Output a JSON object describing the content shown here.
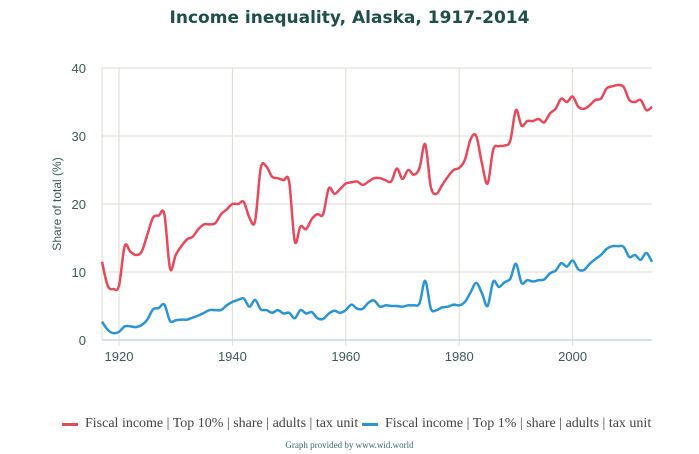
{
  "chart_data": {
    "type": "line",
    "title": "Income inequality, Alaska, 1917-2014",
    "xlabel": "",
    "ylabel": "Share of total (%)",
    "xlim": [
      1917,
      2014
    ],
    "ylim": [
      0,
      40
    ],
    "xticks": [
      1920,
      1940,
      1960,
      1980,
      2000
    ],
    "yticks": [
      0,
      10,
      20,
      30,
      40
    ],
    "grid": true,
    "legend_position": "bottom",
    "x_start": 1917,
    "series": [
      {
        "name": "Fiscal income | Top 10% | share | adults | tax unit",
        "color": "#e9485a",
        "values": [
          11.5,
          8,
          7.5,
          8,
          13.8,
          13,
          12.5,
          13,
          15.5,
          18,
          18.3,
          18.5,
          10.5,
          12.5,
          13.8,
          14.8,
          15.2,
          16.3,
          17,
          17,
          17.2,
          18.5,
          19.2,
          20,
          20,
          20.3,
          18,
          17.5,
          25.3,
          25.5,
          24,
          23.8,
          23.5,
          23.3,
          14.5,
          16.7,
          16.3,
          17.8,
          18.5,
          18.5,
          22.3,
          21.5,
          22.2,
          23,
          23.2,
          23.3,
          22.8,
          23.3,
          23.8,
          23.8,
          23.5,
          23.3,
          25.2,
          23.7,
          25,
          24.3,
          25.3,
          28.8,
          22.5,
          21.5,
          22.8,
          24,
          25,
          25.3,
          26.5,
          29.5,
          30,
          26,
          23,
          28,
          28.5,
          28.6,
          29.3,
          33.8,
          31.5,
          32.2,
          32.2,
          32.5,
          32,
          33.3,
          34,
          35.5,
          35,
          35.8,
          34.3,
          34,
          34.5,
          35.3,
          35.5,
          37,
          37.3,
          37.5,
          37.2,
          35.3,
          35,
          35.3,
          33.8,
          34.3
        ]
      },
      {
        "name": "Fiscal income | Top 1% | share | adults | tax unit",
        "color": "#2a95d3",
        "values": [
          2.7,
          1.5,
          1,
          1.2,
          2,
          2,
          1.9,
          2.2,
          3,
          4.5,
          4.7,
          5.2,
          2.8,
          2.9,
          3,
          3,
          3.3,
          3.6,
          4,
          4.4,
          4.4,
          4.4,
          5.1,
          5.6,
          5.9,
          6.1,
          4.9,
          5.9,
          4.5,
          4.4,
          4,
          4.4,
          3.9,
          4,
          3.2,
          4.4,
          3.9,
          4.1,
          3.2,
          3.1,
          3.9,
          4.3,
          4,
          4.4,
          5.2,
          4.6,
          4.6,
          5.5,
          5.8,
          4.9,
          5.1,
          5,
          5,
          4.9,
          5.1,
          5.1,
          5.4,
          8.7,
          4.6,
          4.4,
          4.8,
          4.9,
          5.2,
          5.1,
          5.6,
          7,
          8.4,
          6.9,
          5,
          8.6,
          7.8,
          8.5,
          9,
          11.2,
          8.4,
          8.8,
          8.6,
          8.8,
          8.9,
          9.8,
          10.2,
          11.3,
          10.8,
          11.7,
          10.4,
          10.3,
          11.2,
          11.9,
          12.5,
          13.4,
          13.8,
          13.8,
          13.7,
          12.2,
          12.5,
          11.8,
          12.8,
          11.5
        ]
      }
    ]
  },
  "credit": "Graph provided by www.wid.world"
}
